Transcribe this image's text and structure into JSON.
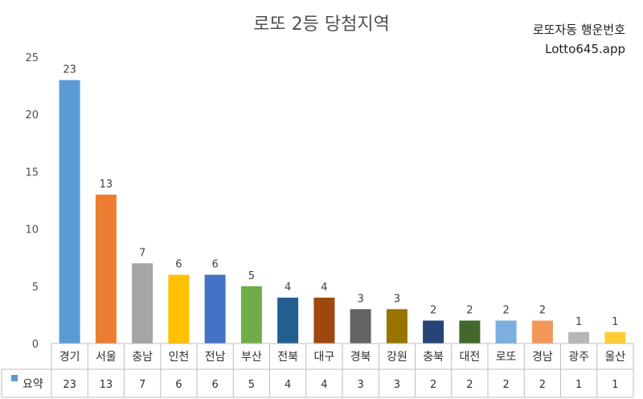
{
  "chart_data": {
    "type": "bar",
    "title": "로또 2등 당첨지역",
    "categories": [
      "경기",
      "서울",
      "충남",
      "인천",
      "전남",
      "부산",
      "전북",
      "대구",
      "경북",
      "강원",
      "충북",
      "대전",
      "로또",
      "경남",
      "광주",
      "울산"
    ],
    "series": [
      {
        "name": "요약",
        "values": [
          23,
          13,
          7,
          6,
          6,
          5,
          4,
          4,
          3,
          3,
          2,
          2,
          2,
          2,
          1,
          1
        ],
        "colors": [
          "#5B9BD5",
          "#ED7D31",
          "#A5A5A5",
          "#FFC000",
          "#4472C4",
          "#70AD47",
          "#255E91",
          "#9E480E",
          "#636363",
          "#997300",
          "#264478",
          "#43682B",
          "#7CAFDD",
          "#F1975A",
          "#B7B7B7",
          "#FFCD33"
        ]
      }
    ],
    "ylim": [
      0,
      25
    ],
    "yticks": [
      0,
      5,
      10,
      15,
      20,
      25
    ],
    "grid": false,
    "legend": "data-table"
  },
  "watermark": {
    "line1": "로또자동 행운번호",
    "line2": "Lotto645.app"
  }
}
